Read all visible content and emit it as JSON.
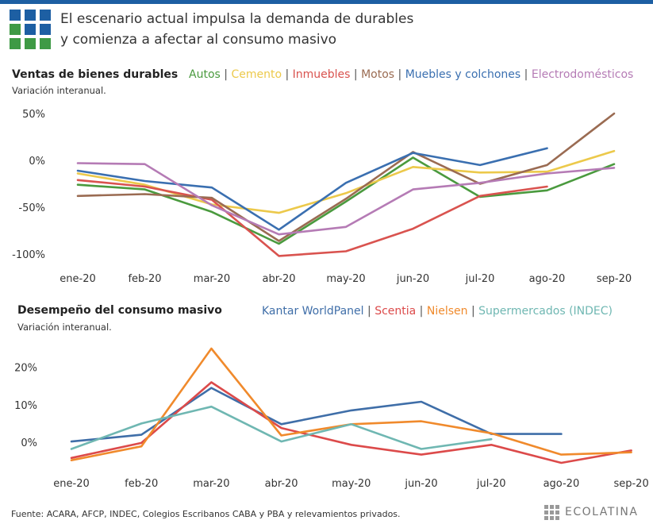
{
  "header": {
    "title_line1": "El escenario actual impulsa la demanda de durables",
    "title_line2": "y comienza a afectar al consumo masivo"
  },
  "footer": {
    "source": "Fuente: ACARA, AFCP, INDEC, Colegios Escribanos CABA y PBA y relevamientos privados.",
    "brand": "ECOLATINA"
  },
  "colors": {
    "topbar": "#1d5fa3",
    "logo_blue": "#1d5fa3",
    "logo_green": "#3e9a45"
  },
  "chart_data": [
    {
      "type": "line",
      "title": "Ventas de bienes durables",
      "subtitle": "Variación interanual.",
      "categories": [
        "ene-20",
        "feb-20",
        "mar-20",
        "abr-20",
        "may-20",
        "jun-20",
        "jul-20",
        "ago-20",
        "sep-20"
      ],
      "y_ticks": [
        50,
        0,
        -50,
        -100
      ],
      "y_tick_labels": [
        "50%",
        "0%",
        "-50%",
        "-100%"
      ],
      "ylim": [
        -110,
        58
      ],
      "grid": false,
      "legend_position": "top",
      "series": [
        {
          "name": "Autos",
          "color": "#4a9a3e",
          "values": [
            -26,
            -31,
            -55,
            -89,
            -44,
            3,
            -39,
            -32,
            -4
          ]
        },
        {
          "name": "Cemento",
          "color": "#ecc94b",
          "values": [
            -14,
            -26,
            -47,
            -56,
            -35,
            -7,
            -13,
            -12,
            10
          ]
        },
        {
          "name": "Inmuebles",
          "color": "#d9534f",
          "values": [
            -21,
            -28,
            -42,
            -102,
            -97,
            -73,
            -38,
            -28,
            null
          ]
        },
        {
          "name": "Motos",
          "color": "#9a6b52",
          "values": [
            -38,
            -36,
            -40,
            -86,
            -41,
            9,
            -25,
            -5,
            50
          ]
        },
        {
          "name": "Muebles y colchones",
          "color": "#3a6fb0",
          "values": [
            -11,
            -22,
            -29,
            -74,
            -24,
            8,
            -5,
            13,
            null
          ]
        },
        {
          "name": "Electrodomésticos",
          "color": "#b57bb5",
          "values": [
            -3,
            -4,
            -48,
            -79,
            -71,
            -31,
            -24,
            -14,
            -8
          ]
        }
      ]
    },
    {
      "type": "line",
      "title": "Desempeño del consumo masivo",
      "subtitle": "Variación interanual.",
      "categories": [
        "ene-20",
        "feb-20",
        "mar-20",
        "abr-20",
        "may-20",
        "jun-20",
        "jul-20",
        "ago-20",
        "sep-20"
      ],
      "y_ticks": [
        20,
        10,
        0
      ],
      "y_tick_labels": [
        "20%",
        "10%",
        "0%"
      ],
      "ylim": [
        -8,
        26
      ],
      "grid": false,
      "legend_position": "top",
      "series": [
        {
          "name": "Kantar WorldPanel",
          "color": "#3f6ea8",
          "values": [
            0.2,
            2,
            14.5,
            4.8,
            8.5,
            10.8,
            2.2,
            2.2,
            null
          ]
        },
        {
          "name": "Scentia",
          "color": "#dc4a4a",
          "values": [
            -4.2,
            -0.2,
            16,
            3.8,
            -0.7,
            -3.3,
            -0.7,
            -5.5,
            -2.2
          ]
        },
        {
          "name": "Nielsen",
          "color": "#f08a2c",
          "values": [
            -4.8,
            -1.1,
            25,
            1.8,
            4.8,
            5.6,
            2.4,
            -3.3,
            -2.7
          ]
        },
        {
          "name": "Supermercados (INDEC)",
          "color": "#6fb7b2",
          "values": [
            -1.8,
            5,
            9.5,
            0.2,
            4.8,
            -1.8,
            0.8,
            null,
            null
          ]
        }
      ]
    }
  ]
}
